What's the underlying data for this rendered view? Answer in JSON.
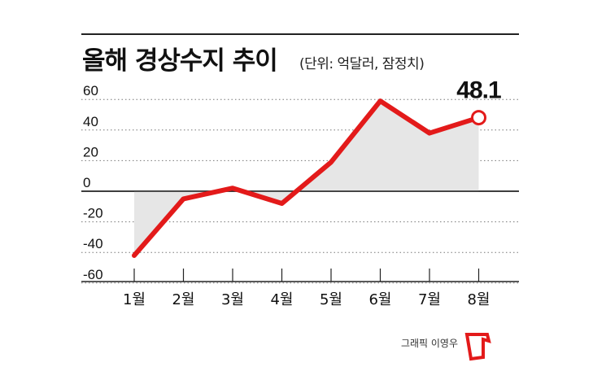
{
  "header": {
    "title": "올해 경상수지 추이",
    "unit_note": "(단위: 억달러, 잠정치)"
  },
  "credit": {
    "text": "그래픽 이영우",
    "logo_icon": "red-bracket-logo-icon",
    "logo_color": "#e31a1a"
  },
  "chart_data": {
    "type": "area",
    "title": "올해 경상수지 추이",
    "unit": "(단위: 억달러, 잠정치)",
    "categories": [
      "1월",
      "2월",
      "3월",
      "4월",
      "5월",
      "6월",
      "7월",
      "8월"
    ],
    "series": [
      {
        "values": [
          -42,
          -5,
          2,
          -8,
          19,
          59,
          38,
          48.1
        ]
      }
    ],
    "yticks": [
      "60",
      "40",
      "20",
      "0",
      "-20",
      "-40",
      "-60"
    ],
    "ylim": [
      -60,
      60
    ],
    "highlight": {
      "index": 7,
      "label": "48.1"
    },
    "grid": "dotted horizontal",
    "colors": {
      "line": "#e31a1a",
      "fill": "#e6e6e6",
      "marker_fill": "#ffffff"
    }
  }
}
